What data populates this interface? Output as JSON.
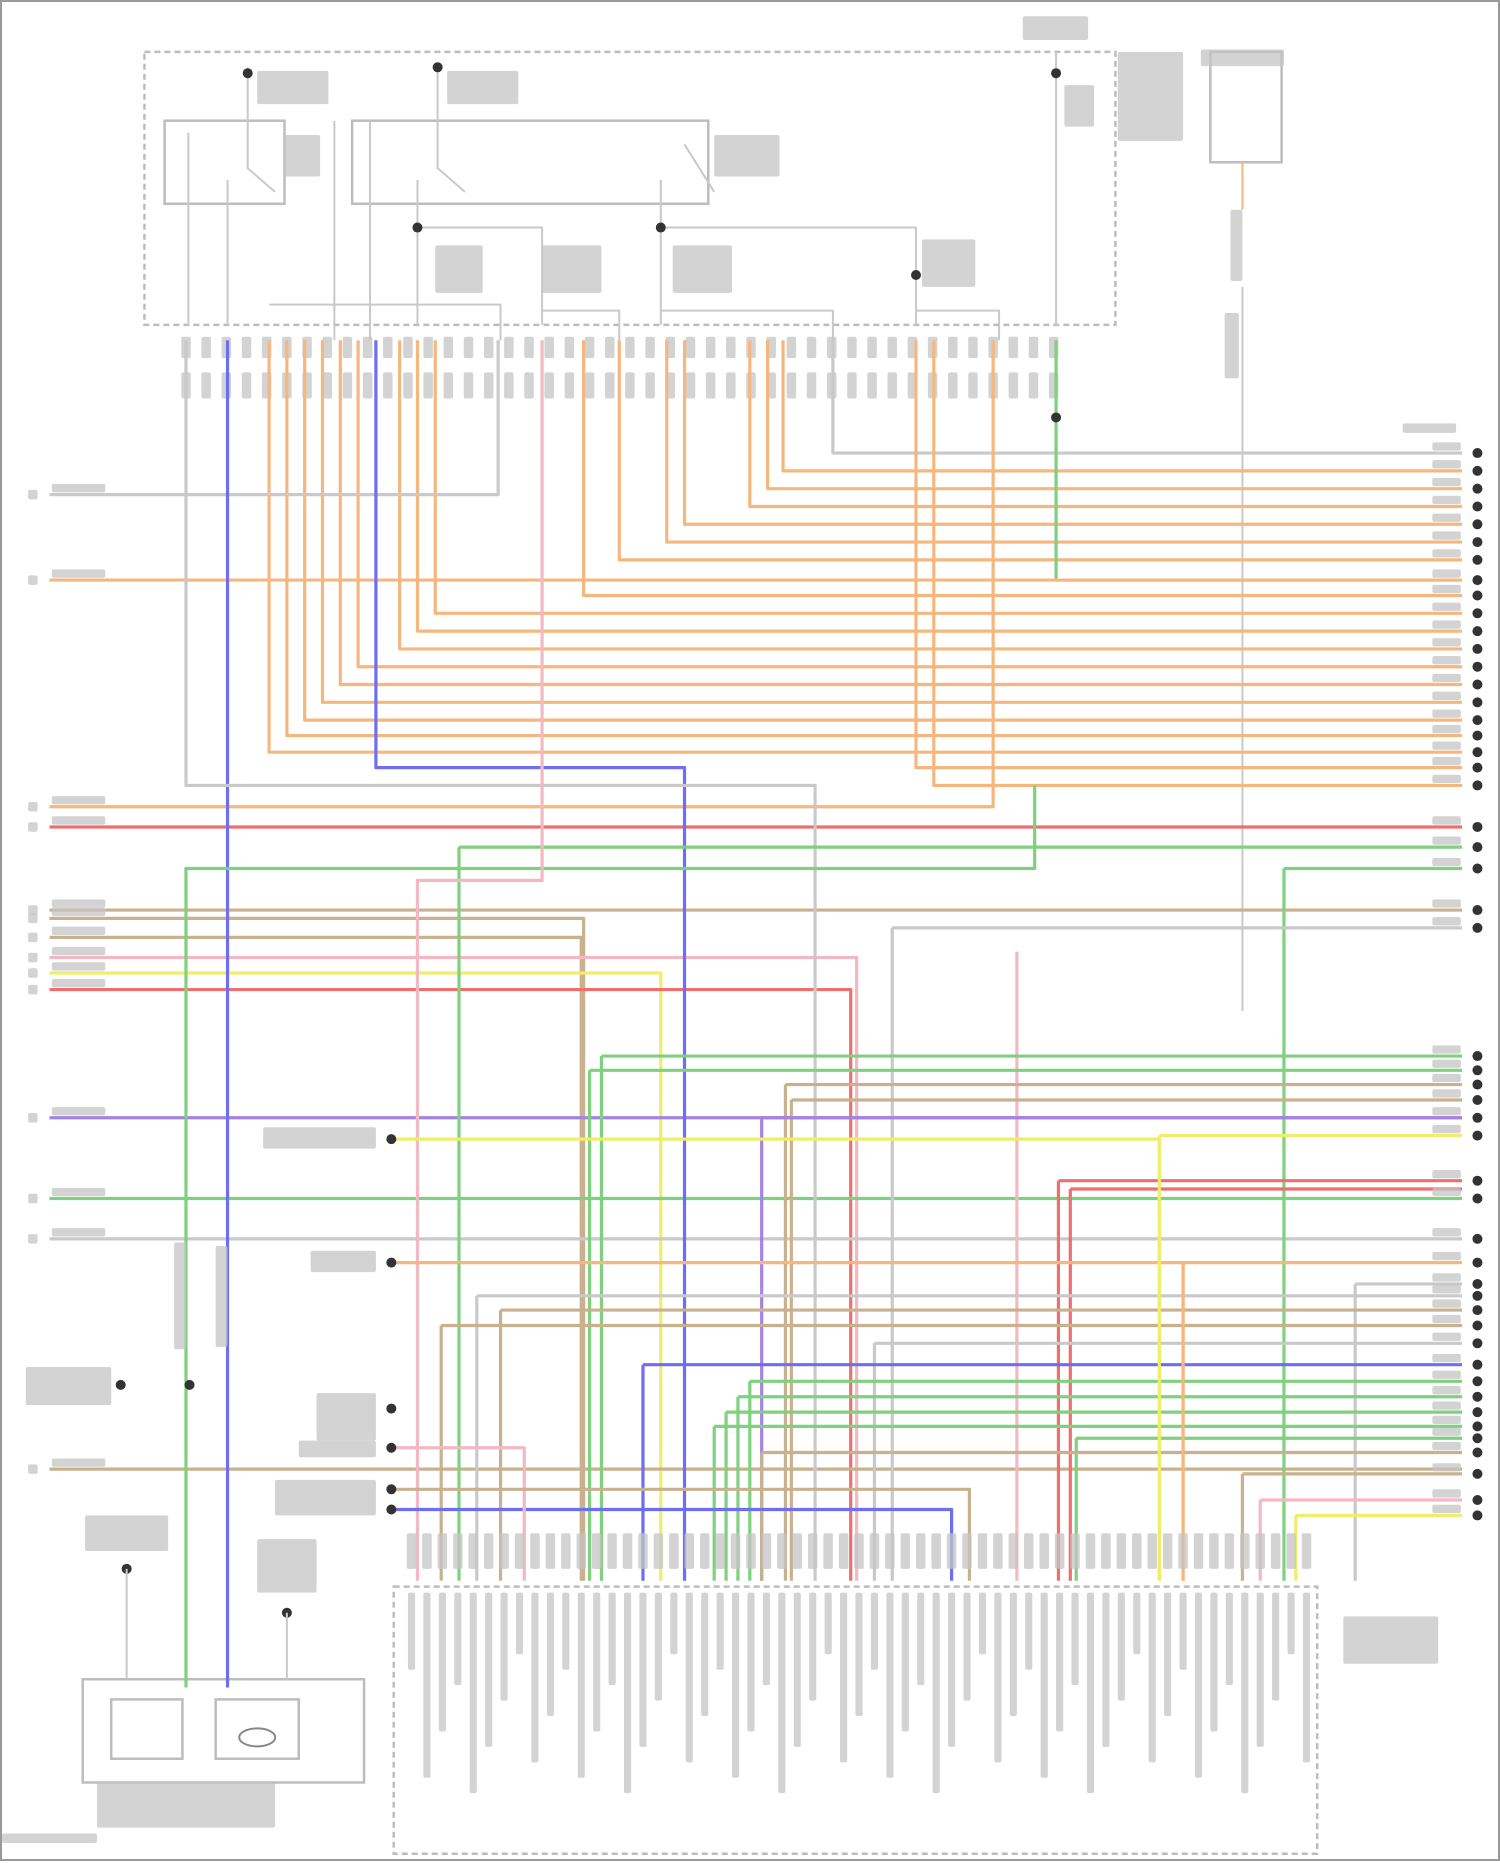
{
  "diagram": {
    "type": "wiring-diagram",
    "wire_colors": {
      "orange": "#f6b77e",
      "gray": "#c9c9c9",
      "blue": "#6e6ef0",
      "green": "#7fd07f",
      "red": "#ef6f6f",
      "pink": "#f3b9c2",
      "tan": "#c9b18f",
      "yellow": "#eeee6a",
      "purple": "#a583e2",
      "dark": "#555555"
    },
    "components": [
      {
        "id": "fuse-relay-box"
      },
      {
        "id": "fuel-pump-relay"
      },
      {
        "id": "engine-control-relay"
      },
      {
        "id": "top-right-module"
      },
      {
        "id": "engine-control-module"
      },
      {
        "id": "fuel-sender-pump-assembly"
      }
    ]
  }
}
